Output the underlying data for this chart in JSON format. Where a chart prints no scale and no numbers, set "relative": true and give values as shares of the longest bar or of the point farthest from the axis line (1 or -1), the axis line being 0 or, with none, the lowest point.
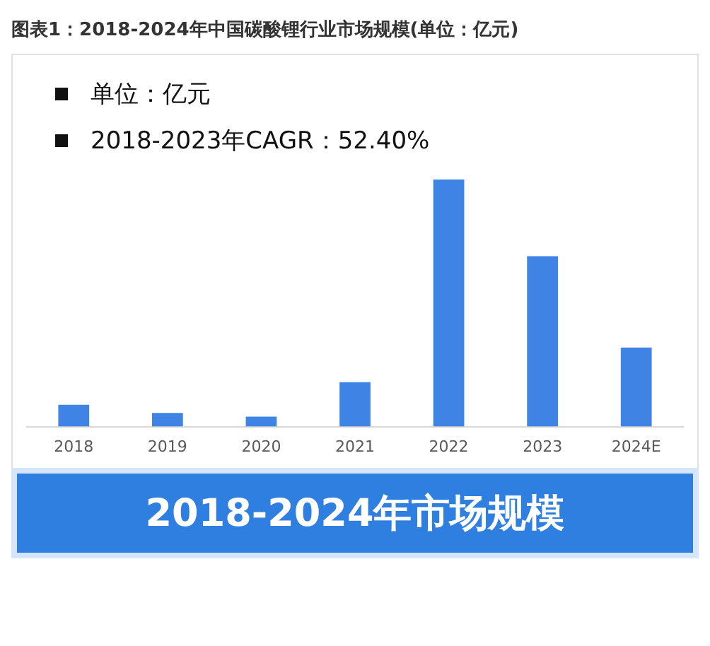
{
  "chart_data": {
    "type": "bar",
    "title": "图表1：2018-2024年中国碳酸锂行业市场规模(单位：亿元)",
    "annotations": [
      "单位：亿元",
      "2018-2023年CAGR：52.40%",
      "2018-2024年市场规模"
    ],
    "categories": [
      "2018",
      "2019",
      "2020",
      "2021",
      "2022",
      "2023",
      "2024E"
    ],
    "values": [
      0.088,
      0.055,
      0.04,
      0.18,
      1,
      0.69,
      0.32
    ],
    "color": "#3f84e5",
    "relative": true,
    "grid": false,
    "legend": false
  }
}
